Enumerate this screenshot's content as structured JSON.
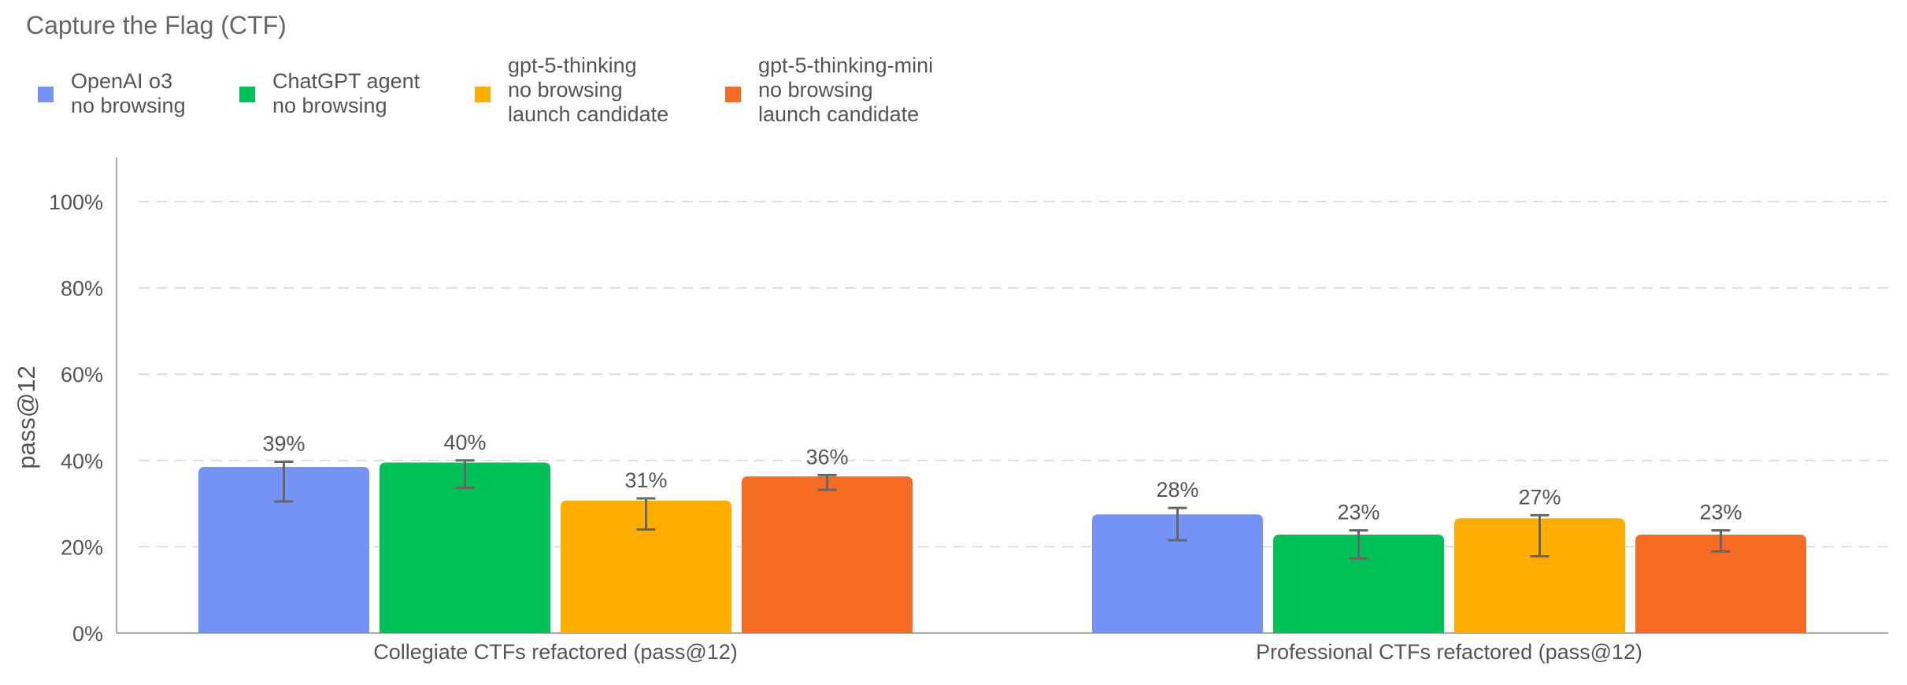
{
  "chart_data": {
    "type": "bar",
    "title": "Capture the Flag (CTF)",
    "ylabel": "pass@12",
    "xlabel": "",
    "ylim": [
      0,
      100
    ],
    "yticks": [
      0,
      20,
      40,
      60,
      80,
      100
    ],
    "ytick_suffix": "%",
    "grid": true,
    "legend_position": "top-left",
    "categories": [
      "Collegiate CTFs refactored (pass@12)",
      "Professional CTFs refactored (pass@12)"
    ],
    "series": [
      {
        "name": "OpenAI o3\nno browsing",
        "color": "#7593F5",
        "values": [
          38.5,
          27.5
        ],
        "labels": [
          "39%",
          "28%"
        ],
        "err_low": [
          30.5,
          21.5
        ],
        "err_high": [
          39.7,
          29.0
        ]
      },
      {
        "name": "ChatGPT agent\nno browsing",
        "color": "#00C157",
        "values": [
          39.5,
          22.8
        ],
        "labels": [
          "40%",
          "23%"
        ],
        "err_low": [
          33.7,
          17.3
        ],
        "err_high": [
          40.0,
          23.8
        ]
      },
      {
        "name": "gpt-5-thinking\nno browsing\nlaunch candidate",
        "color": "#FFAD00",
        "values": [
          30.7,
          26.6
        ],
        "labels": [
          "31%",
          "27%"
        ],
        "err_low": [
          24.0,
          17.8
        ],
        "err_high": [
          31.2,
          27.3
        ]
      },
      {
        "name": "gpt-5-thinking-mini\nno browsing\nlaunch candidate",
        "color": "#F56B22",
        "values": [
          36.3,
          22.8
        ],
        "labels": [
          "36%",
          "23%"
        ],
        "err_low": [
          33.2,
          18.9
        ],
        "err_high": [
          36.6,
          23.8
        ]
      }
    ]
  }
}
